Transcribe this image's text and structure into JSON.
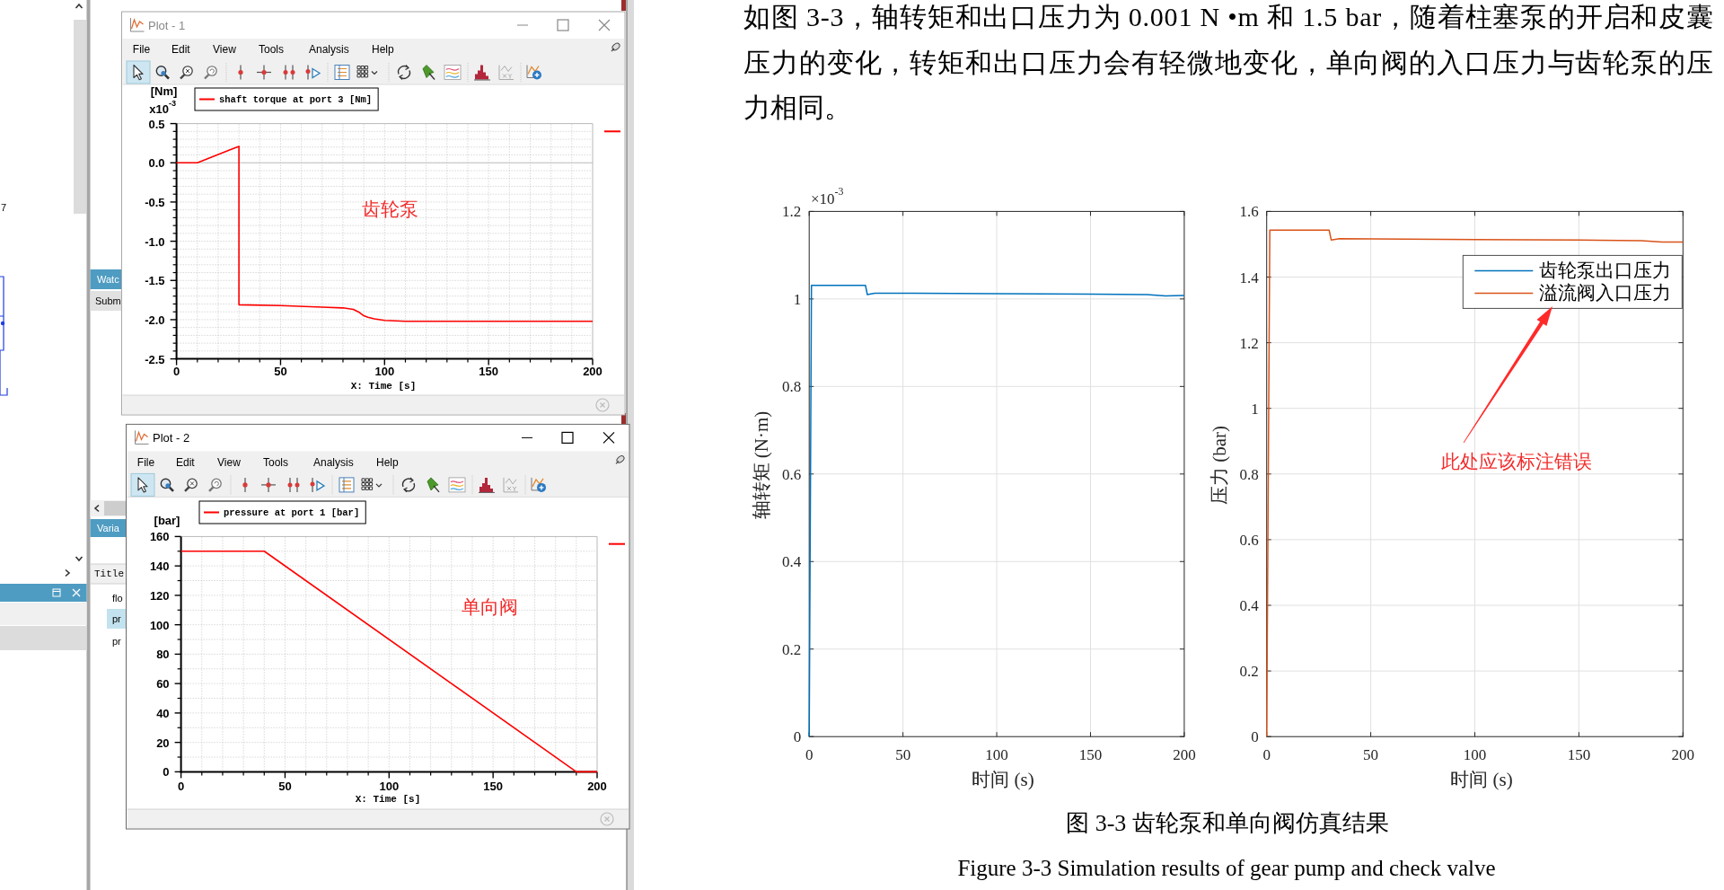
{
  "chart_data": [
    {
      "type": "line",
      "title": "Plot - 1",
      "xlabel": "X: Time [s]",
      "ylabel": "[Nm]",
      "x": [
        0,
        10,
        30,
        30,
        50,
        70,
        80,
        85,
        88,
        90,
        92,
        95,
        100,
        110,
        150,
        200
      ],
      "series": [
        {
          "name": "shaft torque at port 3 [Nm]",
          "color": "#ff0000",
          "values": [
            0,
            0,
            0.21,
            -1.81,
            -1.82,
            -1.84,
            -1.85,
            -1.87,
            -1.91,
            -1.95,
            -1.97,
            -1.99,
            -2.01,
            -2.02,
            -2.02,
            -2.02
          ]
        }
      ],
      "xlim": [
        0,
        200
      ],
      "ylim": [
        -2.5,
        0.5
      ],
      "xticks": [
        0,
        50,
        100,
        150,
        200
      ],
      "yticks": [
        -2.5,
        {
          "value": -2,
          "label": "-2.0"
        },
        -1.5,
        {
          "value": -1,
          "label": "-1.0"
        },
        -0.5,
        {
          "value": 0,
          "label": "0.0"
        },
        0.5
      ],
      "ref_lines": [
        {
          "axis": "y",
          "value": 0,
          "color": "#c0c0c0"
        }
      ],
      "grid": true,
      "legend": "top left",
      "annotations": [
        "File",
        "Edit",
        "View",
        "Tools",
        "Analysis",
        "Help",
        "x10$^{-3}$",
        "齿轮泵",
        "Watc",
        "Subm",
        "Varia",
        "Title",
        "flo",
        "pr",
        "pr",
        "7"
      ]
    },
    {
      "type": "line",
      "title": "Plot - 2",
      "xlabel": "X: Time [s]",
      "ylabel": "[bar]",
      "x": [
        0,
        40,
        190,
        200
      ],
      "series": [
        {
          "name": "pressure at port 1 [bar]",
          "color": "#ff0000",
          "values": [
            150,
            150,
            0,
            0
          ]
        }
      ],
      "xlim": [
        0,
        200
      ],
      "ylim": [
        0,
        160
      ],
      "xticks": [
        0,
        50,
        100,
        150,
        200
      ],
      "yticks": [
        0,
        20,
        40,
        60,
        80,
        100,
        120,
        140,
        160
      ],
      "grid": true,
      "legend": "top left",
      "annotations": [
        "File",
        "Edit",
        "View",
        "Tools",
        "Analysis",
        "Help",
        "单向阀"
      ]
    },
    {
      "type": "line",
      "xlabel": "时间 (s)",
      "ylabel": "轴转矩 (N·m)",
      "x": [
        0,
        1.2,
        30,
        31,
        35,
        50,
        100,
        150,
        180,
        190,
        200
      ],
      "series": [
        {
          "color": "#0072bd",
          "values": [
            0,
            1.031,
            1.031,
            1.01,
            1.013,
            1.013,
            1.012,
            1.011,
            1.01,
            1.007,
            1.008
          ]
        }
      ],
      "xlim": [
        0,
        200
      ],
      "ylim": [
        0,
        1.2
      ],
      "xticks": [
        0,
        50,
        100,
        150,
        200
      ],
      "yticks": [
        0,
        0.2,
        0.4,
        0.6,
        0.8,
        1,
        1.2
      ],
      "grid": true,
      "annotations": [
        "×10$^{-3}$",
        "如图 3-3，轴转矩和出口压力为 0.001 N •m 和 1.5 bar，随着柱塞泵的开启和皮囊压力的变化，转矩和出口压力会有轻微地变化，单向阀的入口压力与齿轮泵的压力相同。",
        "图 3-3 齿轮泵和单向阀仿真结果",
        "Figure 3-3 Simulation results of gear pump and check valve"
      ]
    },
    {
      "type": "line",
      "xlabel": "时间 (s)",
      "ylabel": "压力 (bar)",
      "x": [
        0,
        1.5,
        30,
        31,
        35,
        50,
        100,
        150,
        180,
        190,
        200
      ],
      "series": [
        {
          "name": "齿轮泵出口压力",
          "color": "#0072bd",
          "values": [
            null,
            null,
            null,
            null,
            null,
            null,
            null,
            null,
            null,
            null,
            null
          ]
        },
        {
          "name": "溢流阀入口压力",
          "color": "#d95319",
          "values": [
            0,
            1.543,
            1.543,
            1.513,
            1.517,
            1.516,
            1.514,
            1.513,
            1.511,
            1.507,
            1.507
          ]
        }
      ],
      "xlim": [
        0,
        200
      ],
      "ylim": [
        0,
        1.6
      ],
      "xticks": [
        0,
        50,
        100,
        150,
        200
      ],
      "yticks": [
        0,
        0.2,
        0.4,
        0.6,
        0.8,
        1,
        1.2,
        1.4,
        1.6
      ],
      "grid": true,
      "legend": "top right",
      "annotations": [
        "此处应该标注错误"
      ]
    }
  ]
}
